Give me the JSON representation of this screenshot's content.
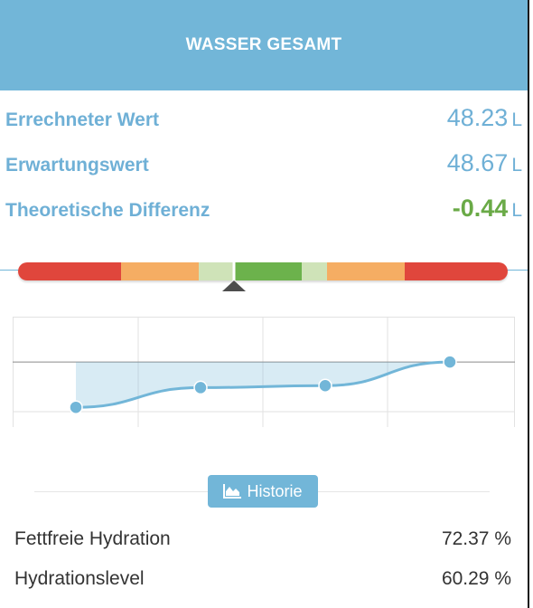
{
  "header": {
    "title": "WASSER GESAMT"
  },
  "metrics": [
    {
      "label": "Errechneter Wert",
      "value": "48.23",
      "unit": "L"
    },
    {
      "label": "Erwartungswert",
      "value": "48.67",
      "unit": "L"
    },
    {
      "label": "Theoretische Differenz",
      "value": "-0.44",
      "unit": "L"
    }
  ],
  "scale": {
    "colors": [
      "#e0463c",
      "#f5ad63",
      "#cfe3b8",
      "#6cb24c",
      "#cfe3b8",
      "#f5ad63",
      "#e0463c"
    ],
    "marker_color": "#4d4d4d"
  },
  "chart_data": {
    "type": "area",
    "x": [
      1,
      2,
      3,
      4
    ],
    "values": [
      -0.23,
      -0.13,
      -0.12,
      0.0
    ],
    "reference_line": 0,
    "grid": true,
    "color": "#72b6d8"
  },
  "history_button": {
    "label": "Historie",
    "icon": "area-chart-icon"
  },
  "details": [
    {
      "label": "Fettfreie Hydration",
      "value": "72.37 %"
    },
    {
      "label": "Hydrationslevel",
      "value": "60.29 %"
    }
  ],
  "colors": {
    "accent": "#72b6d8",
    "positive": "#6aaa47",
    "text": "#333333"
  }
}
